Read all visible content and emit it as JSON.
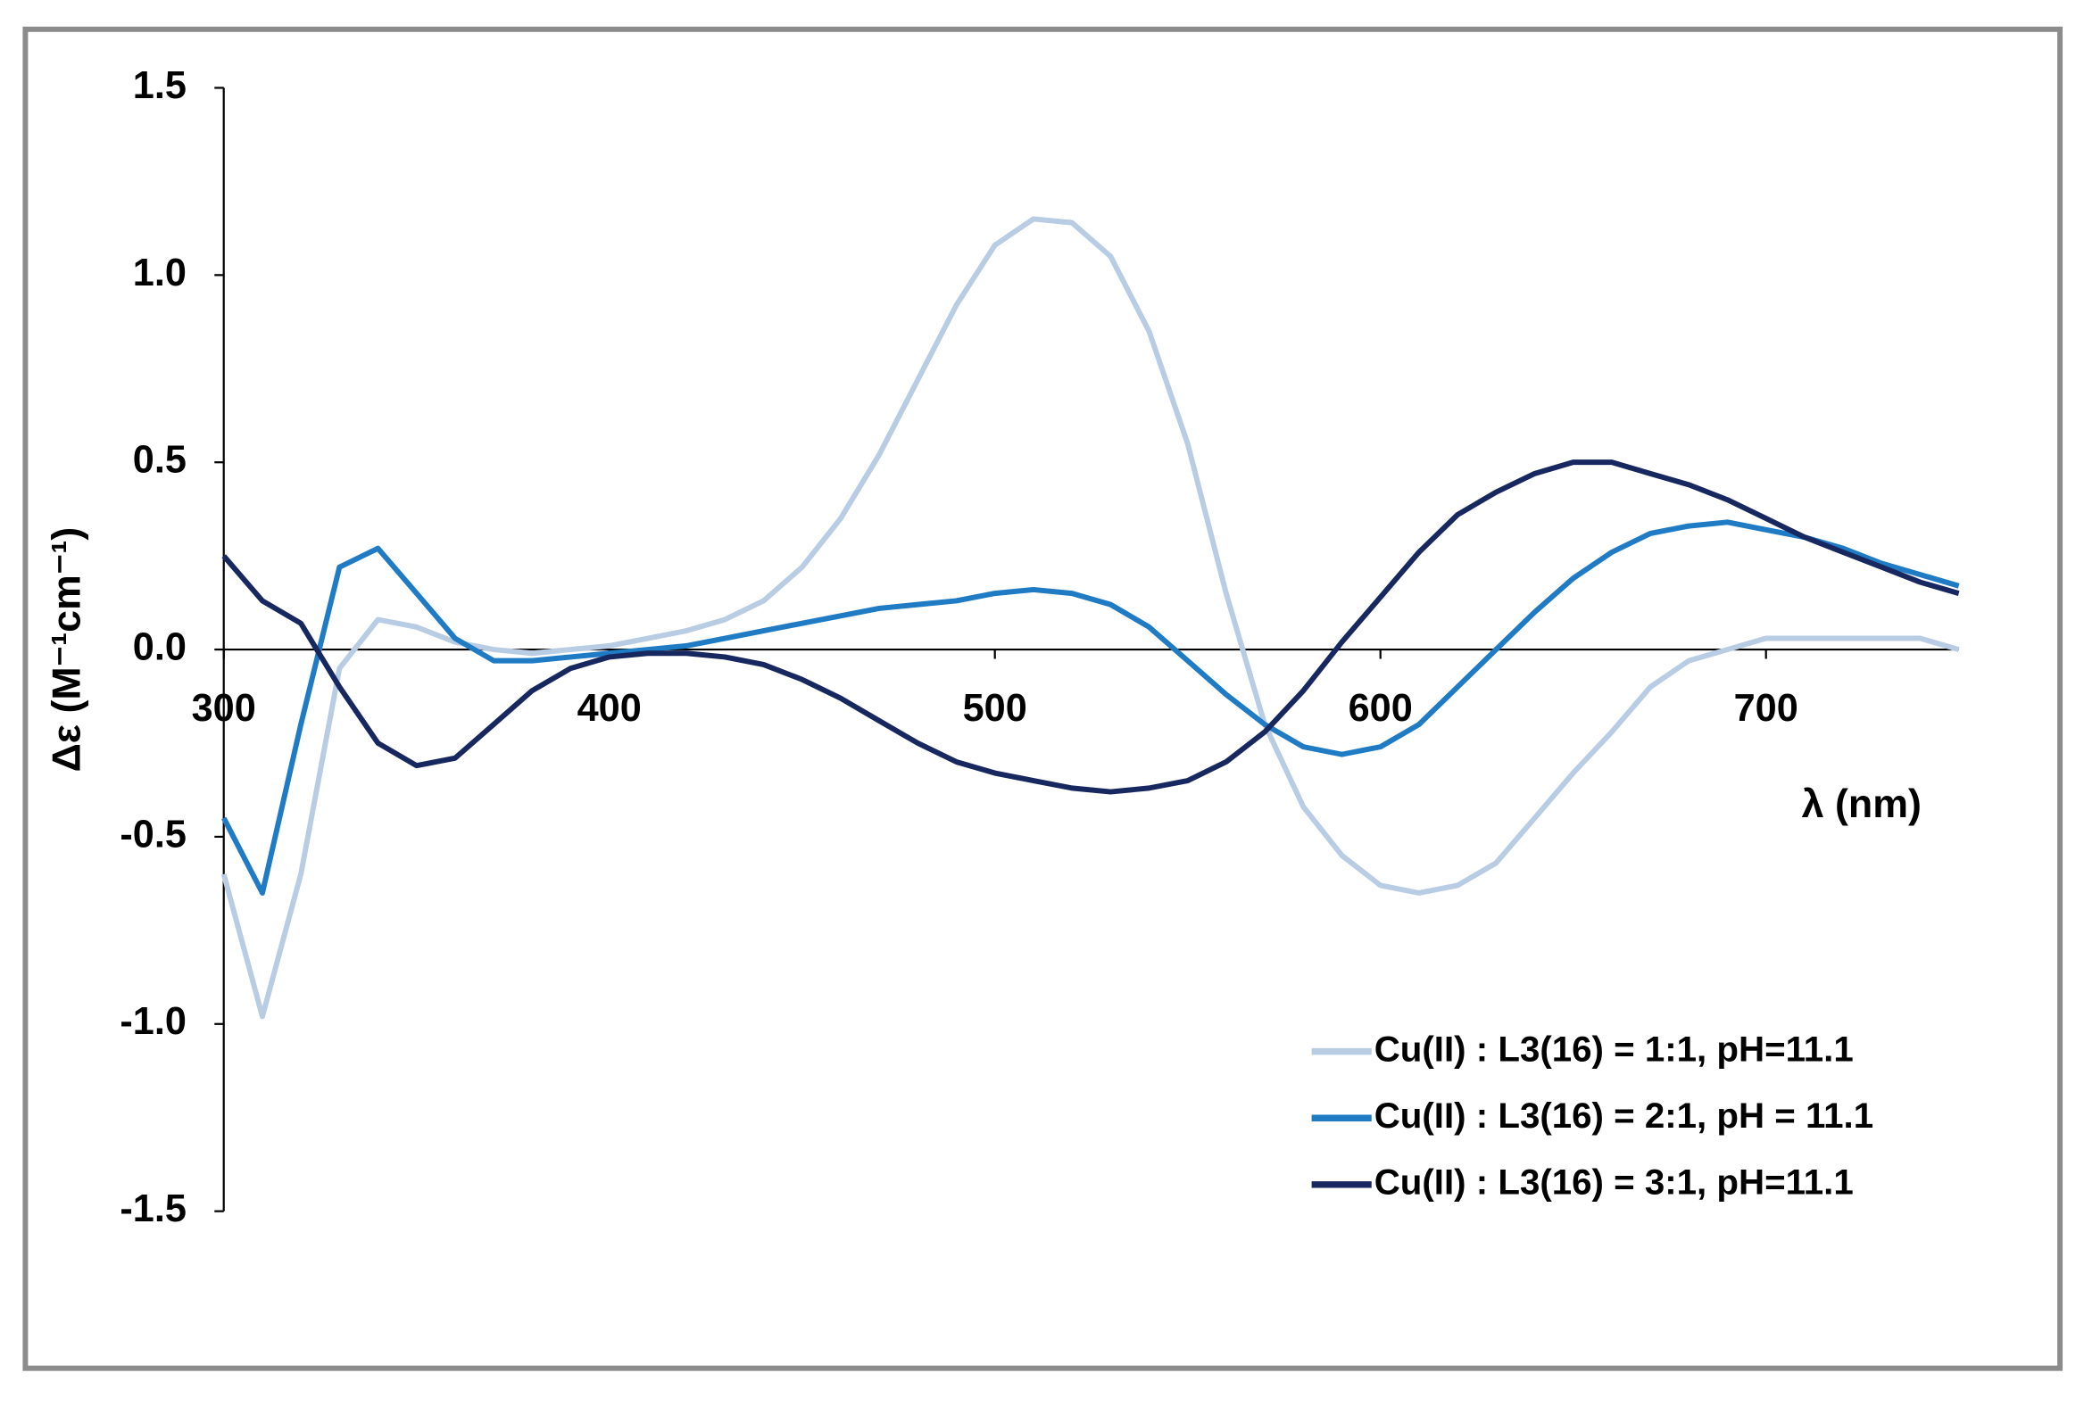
{
  "chart_data": {
    "type": "line",
    "y_label": "Δε (M⁻¹cm⁻¹)",
    "x_label": "λ (nm)",
    "x": [
      300,
      310,
      320,
      330,
      340,
      350,
      360,
      370,
      380,
      390,
      400,
      410,
      420,
      430,
      440,
      450,
      460,
      470,
      480,
      490,
      500,
      510,
      520,
      530,
      540,
      550,
      560,
      570,
      580,
      590,
      600,
      610,
      620,
      630,
      640,
      650,
      660,
      670,
      680,
      690,
      700,
      710,
      720,
      730,
      740,
      750
    ],
    "series": [
      {
        "name": "Cu(II) : L3(16) = 1:1, pH=11.1",
        "color": "#b8cce4",
        "values": [
          -0.6,
          -0.98,
          -0.6,
          -0.05,
          0.08,
          0.06,
          0.02,
          0.0,
          -0.01,
          0.0,
          0.01,
          0.03,
          0.05,
          0.08,
          0.13,
          0.22,
          0.35,
          0.52,
          0.72,
          0.92,
          1.08,
          1.15,
          1.14,
          1.05,
          0.85,
          0.55,
          0.15,
          -0.2,
          -0.42,
          -0.55,
          -0.63,
          -0.65,
          -0.63,
          -0.57,
          -0.45,
          -0.33,
          -0.22,
          -0.1,
          -0.03,
          0.0,
          0.03,
          0.03,
          0.03,
          0.03,
          0.03,
          0.0
        ]
      },
      {
        "name": "Cu(II) : L3(16) = 2:1, pH = 11.1",
        "color": "#1f7bc4",
        "values": [
          -0.45,
          -0.65,
          -0.2,
          0.22,
          0.27,
          0.15,
          0.03,
          -0.03,
          -0.03,
          -0.02,
          -0.01,
          0.0,
          0.01,
          0.03,
          0.05,
          0.07,
          0.09,
          0.11,
          0.12,
          0.13,
          0.15,
          0.16,
          0.15,
          0.12,
          0.06,
          -0.03,
          -0.12,
          -0.2,
          -0.26,
          -0.28,
          -0.26,
          -0.2,
          -0.1,
          0.0,
          0.1,
          0.19,
          0.26,
          0.31,
          0.33,
          0.34,
          0.32,
          0.3,
          0.27,
          0.23,
          0.2,
          0.17
        ]
      },
      {
        "name": "Cu(II) : L3(16) = 3:1, pH=11.1",
        "color": "#17275f",
        "values": [
          0.25,
          0.13,
          0.07,
          -0.1,
          -0.25,
          -0.31,
          -0.29,
          -0.2,
          -0.11,
          -0.05,
          -0.02,
          -0.01,
          -0.01,
          -0.02,
          -0.04,
          -0.08,
          -0.13,
          -0.19,
          -0.25,
          -0.3,
          -0.33,
          -0.35,
          -0.37,
          -0.38,
          -0.37,
          -0.35,
          -0.3,
          -0.22,
          -0.11,
          0.02,
          0.14,
          0.26,
          0.36,
          0.42,
          0.47,
          0.5,
          0.5,
          0.47,
          0.44,
          0.4,
          0.35,
          0.3,
          0.26,
          0.22,
          0.18,
          0.15
        ]
      }
    ],
    "xlim": [
      300,
      750
    ],
    "xticks": [
      300,
      400,
      500,
      600,
      700
    ],
    "ylim": [
      -1.5,
      1.5
    ],
    "yticks": [
      {
        "value": -1.5,
        "label": "-1.5"
      },
      {
        "value": -1,
        "label": "-1.0"
      },
      -0.5,
      {
        "value": 0,
        "label": "0.0"
      },
      0.5,
      {
        "value": 1,
        "label": "1.0"
      },
      1.5
    ],
    "grid": false,
    "legend": "lower right"
  }
}
